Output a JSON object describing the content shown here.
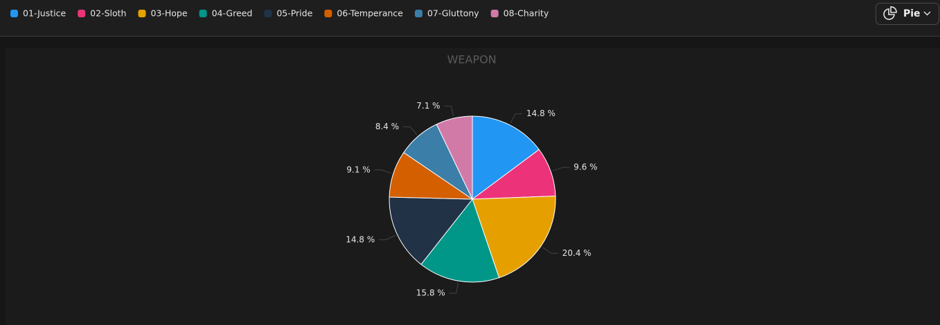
{
  "controls": {
    "chart_type_button": "Pie"
  },
  "chart_data": {
    "type": "pie",
    "title": "WEAPON",
    "categories": [
      "01-Justice",
      "02-Sloth",
      "03-Hope",
      "04-Greed",
      "05-Pride",
      "06-Temperance",
      "07-Gluttony",
      "08-Charity"
    ],
    "values": [
      14.8,
      9.6,
      20.4,
      15.8,
      14.8,
      9.1,
      8.4,
      7.1
    ],
    "value_labels": [
      "14.8 %",
      "9.6 %",
      "20.4 %",
      "15.8 %",
      "14.8 %",
      "9.1 %",
      "8.4 %",
      "7.1 %"
    ],
    "colors": [
      "#2196f3",
      "#ec3379",
      "#e5a000",
      "#009688",
      "#213246",
      "#d35f00",
      "#3b7ea8",
      "#d17aa8"
    ],
    "legend": "top-left"
  }
}
